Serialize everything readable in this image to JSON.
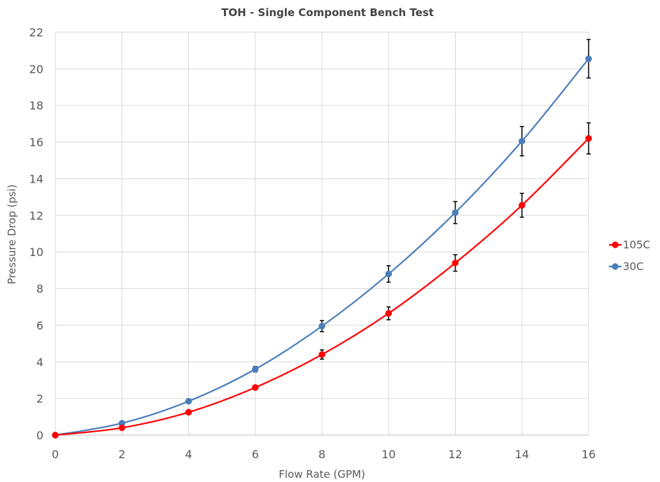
{
  "chart_data": {
    "type": "line",
    "title": "TOH - Single Component Bench Test",
    "xlabel": "Flow Rate (GPM)",
    "ylabel": "Pressure Drop (psi)",
    "x": [
      0,
      2,
      4,
      6,
      8,
      10,
      12,
      14,
      16
    ],
    "xlim": [
      0,
      16
    ],
    "ylim": [
      0,
      22
    ],
    "x_ticks": [
      "0",
      "2",
      "4",
      "6",
      "8",
      "10",
      "12",
      "14",
      "16"
    ],
    "y_ticks": [
      "0",
      "2",
      "4",
      "6",
      "8",
      "10",
      "12",
      "14",
      "16",
      "18",
      "20",
      "22"
    ],
    "grid": true,
    "legend_position": "right",
    "series": [
      {
        "name": "105C",
        "color": "#ff0000",
        "values": [
          0,
          0.4,
          1.25,
          2.6,
          4.4,
          6.65,
          9.4,
          12.55,
          16.2
        ],
        "error": [
          null,
          null,
          null,
          null,
          0.25,
          0.35,
          0.45,
          0.65,
          0.85
        ]
      },
      {
        "name": "30C",
        "color": "#4a7ebb",
        "values": [
          0,
          0.65,
          1.85,
          3.6,
          5.95,
          8.8,
          12.15,
          16.05,
          20.55
        ],
        "error": [
          null,
          null,
          null,
          0.15,
          0.3,
          0.45,
          0.6,
          0.8,
          1.05
        ]
      }
    ]
  }
}
